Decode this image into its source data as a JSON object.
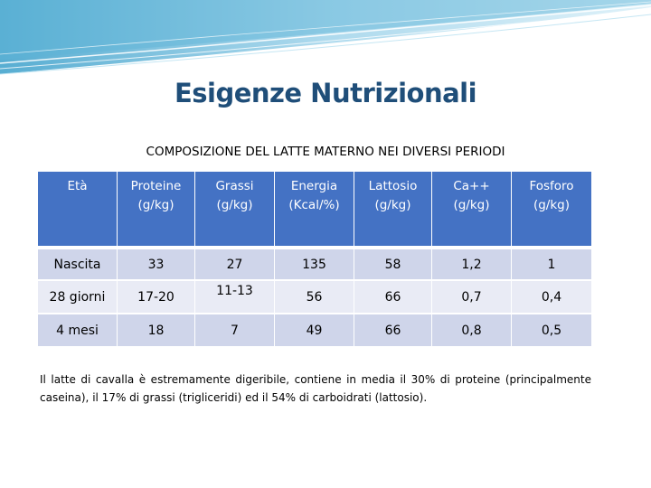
{
  "title": "Esigenze Nutrizionali",
  "subtitle": "COMPOSIZIONE DEL LATTE MATERNO NEI DIVERSI PERIODI",
  "table": {
    "headers": [
      [
        "Età",
        ""
      ],
      [
        "Proteine",
        "(g/kg)"
      ],
      [
        "Grassi",
        "(g/kg)"
      ],
      [
        "Energia",
        "(Kcal/%)"
      ],
      [
        "Lattosio",
        "(g/kg)"
      ],
      [
        "Ca++",
        "(g/kg)"
      ],
      [
        "Fosforo",
        "(g/kg)"
      ]
    ],
    "rows": [
      [
        "Nascita",
        "33",
        "27",
        "135",
        "58",
        "1,2",
        "1"
      ],
      [
        "28 giorni",
        "17-20",
        "11-13",
        "56",
        "66",
        "0,7",
        "0,4"
      ],
      [
        "4 mesi",
        "18",
        "7",
        "49",
        "66",
        "0,8",
        "0,5"
      ]
    ]
  },
  "note": "Il latte di cavalla è estremamente digeribile, contiene in media il 30% di proteine (principalmente caseina), il 17% di grassi (trigliceridi) ed il 54% di carboidrati (lattosio).",
  "colors": {
    "header_bg": "#4472c4",
    "row_dark": "#cfd5ea",
    "row_light": "#e9ebf5",
    "title": "#1f4e79",
    "banner_light": "#c8e6f3",
    "banner_dark": "#4aa8cf"
  }
}
